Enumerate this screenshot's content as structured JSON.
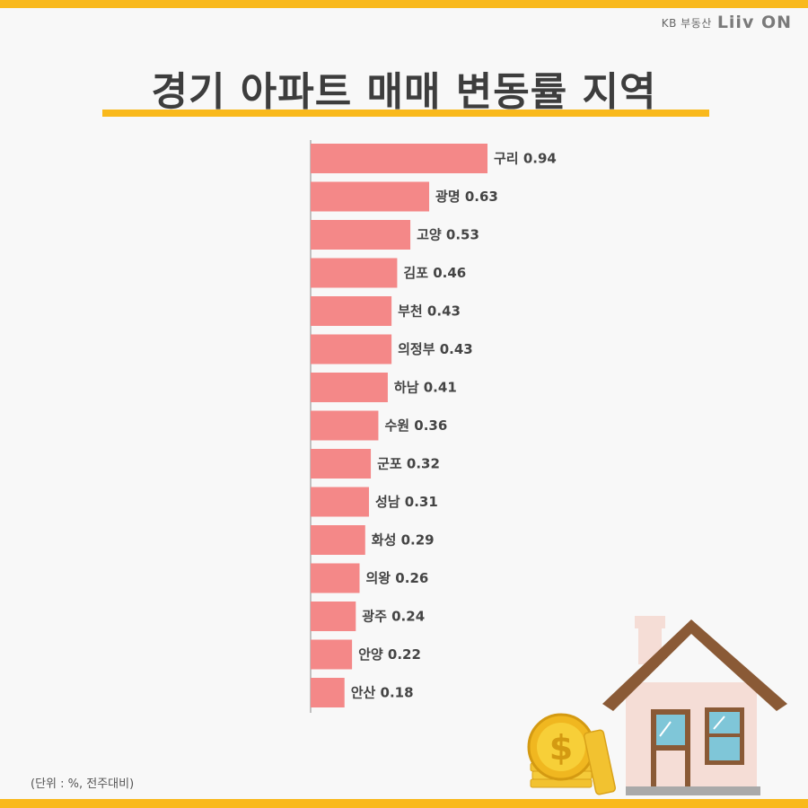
{
  "brand": {
    "kb": "KB 부동산",
    "logo": "Liiv ON"
  },
  "title": "경기 아파트 매매 변동률 지역",
  "unit_note": "(단위 : %, 전주대비)",
  "colors": {
    "accent": "#f9b91c",
    "bar": "#f48888",
    "text": "#3d3d3d"
  },
  "chart_data": {
    "type": "bar",
    "orientation": "horizontal",
    "title": "경기 아파트 매매 변동률 지역",
    "xlabel": "",
    "ylabel": "",
    "unit": "(단위 : %, 전주대비)",
    "xlim": [
      0,
      1.0
    ],
    "grid": false,
    "categories": [
      "구리",
      "광명",
      "고양",
      "김포",
      "부천",
      "의정부",
      "하남",
      "수원",
      "군포",
      "성남",
      "화성",
      "의왕",
      "광주",
      "안양",
      "안산"
    ],
    "values": [
      0.94,
      0.63,
      0.53,
      0.46,
      0.43,
      0.43,
      0.41,
      0.36,
      0.32,
      0.31,
      0.29,
      0.26,
      0.24,
      0.22,
      0.18
    ],
    "labels": [
      "구리 0.94",
      "광명 0.63",
      "고양 0.53",
      "김포 0.46",
      "부천 0.43",
      "의정부 0.43",
      "하남 0.41",
      "수원 0.36",
      "군포 0.32",
      "성남 0.31",
      "화성 0.29",
      "의왕 0.26",
      "광주 0.24",
      "안양 0.22",
      "안산 0.18"
    ]
  }
}
